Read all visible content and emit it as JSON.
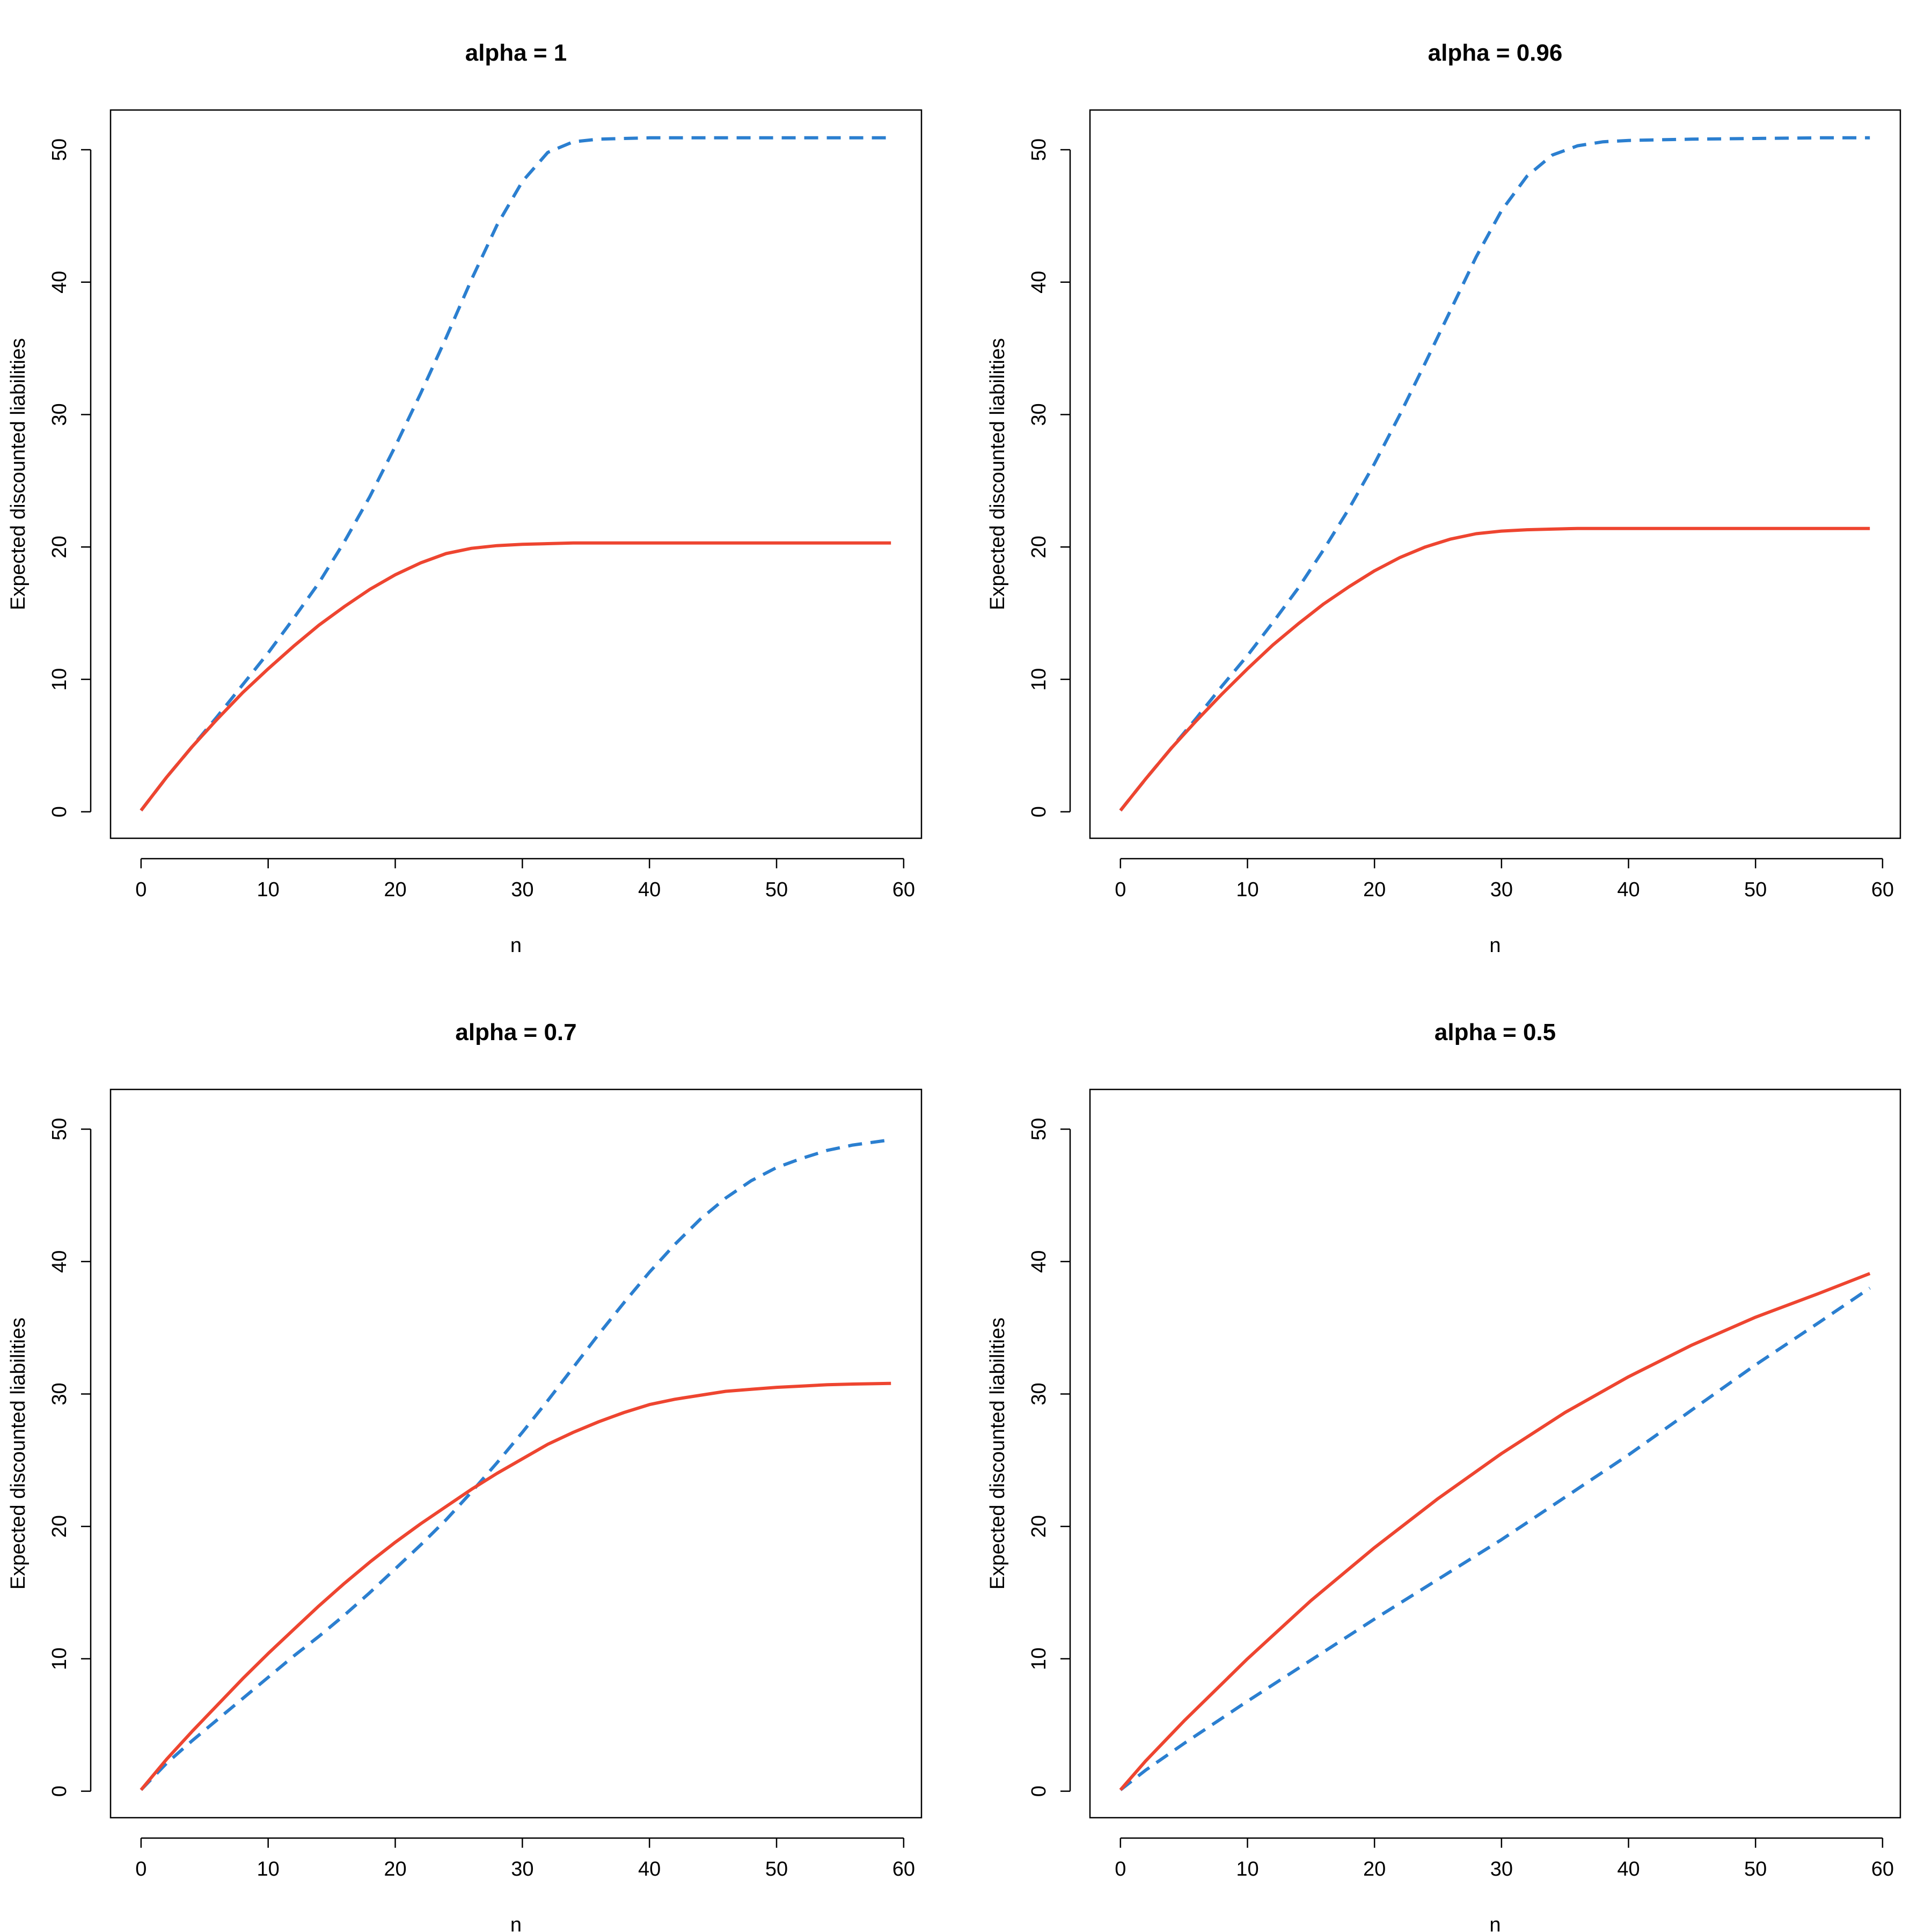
{
  "chart_data": [
    {
      "type": "line",
      "title": "alpha =  1",
      "xlabel": "n",
      "ylabel": "Expected discounted liabilities",
      "xlim": [
        -2.4,
        61.4
      ],
      "ylim": [
        -2,
        53
      ],
      "xticks": [
        "0",
        "10",
        "20",
        "30",
        "40",
        "50",
        "60"
      ],
      "yticks": [
        "0",
        "10",
        "20",
        "30",
        "40",
        "50"
      ],
      "series": [
        {
          "style": "dashed",
          "color": "#2B7FD0",
          "x": [
            0,
            2,
            4,
            6,
            8,
            10,
            12,
            14,
            16,
            18,
            20,
            22,
            24,
            26,
            28,
            30,
            32,
            34,
            36,
            38,
            40,
            45,
            50,
            55,
            59
          ],
          "y": [
            0.1,
            2.6,
            4.9,
            7.2,
            9.6,
            12.0,
            14.6,
            17.3,
            20.4,
            23.8,
            27.6,
            31.6,
            35.8,
            40.2,
            44.3,
            47.6,
            49.8,
            50.6,
            50.8,
            50.85,
            50.9,
            50.9,
            50.9,
            50.9,
            50.9
          ]
        },
        {
          "style": "solid",
          "color": "#EE4530",
          "x": [
            0,
            2,
            4,
            6,
            8,
            10,
            12,
            14,
            16,
            18,
            20,
            22,
            24,
            26,
            28,
            30,
            32,
            34,
            36,
            40,
            45,
            50,
            55,
            59
          ],
          "y": [
            0.1,
            2.6,
            4.9,
            7.0,
            9.0,
            10.8,
            12.5,
            14.1,
            15.5,
            16.8,
            17.9,
            18.8,
            19.5,
            19.9,
            20.1,
            20.2,
            20.25,
            20.3,
            20.3,
            20.3,
            20.3,
            20.3,
            20.3,
            20.3
          ]
        }
      ]
    },
    {
      "type": "line",
      "title": "alpha =  0.96",
      "xlabel": "n",
      "ylabel": "Expected discounted liabilities",
      "xlim": [
        -2.4,
        61.4
      ],
      "ylim": [
        -2,
        53
      ],
      "xticks": [
        "0",
        "10",
        "20",
        "30",
        "40",
        "50",
        "60"
      ],
      "yticks": [
        "0",
        "10",
        "20",
        "30",
        "40",
        "50"
      ],
      "series": [
        {
          "style": "dashed",
          "color": "#2B7FD0",
          "x": [
            0,
            2,
            4,
            6,
            8,
            10,
            12,
            14,
            16,
            18,
            20,
            22,
            24,
            26,
            28,
            30,
            32,
            34,
            36,
            38,
            40,
            45,
            50,
            55,
            59
          ],
          "y": [
            0.1,
            2.5,
            4.8,
            7.1,
            9.5,
            11.8,
            14.3,
            16.9,
            19.8,
            22.9,
            26.3,
            30.0,
            33.9,
            37.9,
            41.9,
            45.4,
            48.0,
            49.6,
            50.3,
            50.6,
            50.7,
            50.8,
            50.85,
            50.9,
            50.9
          ]
        },
        {
          "style": "solid",
          "color": "#EE4530",
          "x": [
            0,
            2,
            4,
            6,
            8,
            10,
            12,
            14,
            16,
            18,
            20,
            22,
            24,
            26,
            28,
            30,
            32,
            34,
            36,
            40,
            45,
            50,
            55,
            59
          ],
          "y": [
            0.1,
            2.5,
            4.8,
            6.9,
            8.9,
            10.8,
            12.6,
            14.2,
            15.7,
            17.0,
            18.2,
            19.2,
            20.0,
            20.6,
            21.0,
            21.2,
            21.3,
            21.35,
            21.4,
            21.4,
            21.4,
            21.4,
            21.4,
            21.4
          ]
        }
      ]
    },
    {
      "type": "line",
      "title": "alpha =  0.7",
      "xlabel": "n",
      "ylabel": "Expected discounted liabilities",
      "xlim": [
        -2.4,
        61.4
      ],
      "ylim": [
        -2,
        53
      ],
      "xticks": [
        "0",
        "10",
        "20",
        "30",
        "40",
        "50",
        "60"
      ],
      "yticks": [
        "0",
        "10",
        "20",
        "30",
        "40",
        "50"
      ],
      "series": [
        {
          "style": "dashed",
          "color": "#2B7FD0",
          "x": [
            0,
            2,
            4,
            6,
            8,
            10,
            12,
            14,
            16,
            18,
            20,
            22,
            24,
            26,
            28,
            30,
            32,
            34,
            36,
            38,
            40,
            42,
            44,
            46,
            48,
            50,
            52,
            54,
            56,
            59
          ],
          "y": [
            0.1,
            2.1,
            3.8,
            5.4,
            7.0,
            8.6,
            10.2,
            11.7,
            13.3,
            15.0,
            16.8,
            18.6,
            20.5,
            22.6,
            24.8,
            27.1,
            29.5,
            32.0,
            34.5,
            36.9,
            39.2,
            41.3,
            43.2,
            44.8,
            46.1,
            47.1,
            47.8,
            48.4,
            48.8,
            49.2
          ]
        },
        {
          "style": "solid",
          "color": "#EE4530",
          "x": [
            0,
            2,
            4,
            6,
            8,
            10,
            12,
            14,
            16,
            18,
            20,
            22,
            24,
            26,
            28,
            30,
            32,
            34,
            36,
            38,
            40,
            42,
            44,
            46,
            48,
            50,
            52,
            54,
            56,
            59
          ],
          "y": [
            0.1,
            2.4,
            4.5,
            6.5,
            8.5,
            10.4,
            12.2,
            14.0,
            15.7,
            17.3,
            18.8,
            20.2,
            21.5,
            22.8,
            24.0,
            25.1,
            26.2,
            27.1,
            27.9,
            28.6,
            29.2,
            29.6,
            29.9,
            30.2,
            30.35,
            30.5,
            30.6,
            30.7,
            30.75,
            30.8
          ]
        }
      ]
    },
    {
      "type": "line",
      "title": "alpha =  0.5",
      "xlabel": "n",
      "ylabel": "Expected discounted liabilities",
      "xlim": [
        -2.4,
        61.4
      ],
      "ylim": [
        -2,
        53
      ],
      "xticks": [
        "0",
        "10",
        "20",
        "30",
        "40",
        "50",
        "60"
      ],
      "yticks": [
        "0",
        "10",
        "20",
        "30",
        "40",
        "50"
      ],
      "series": [
        {
          "style": "dashed",
          "color": "#2B7FD0",
          "x": [
            0,
            2,
            5,
            10,
            15,
            20,
            25,
            30,
            35,
            40,
            45,
            50,
            55,
            59
          ],
          "y": [
            0.1,
            1.6,
            3.6,
            6.8,
            9.9,
            13.0,
            16.0,
            19.0,
            22.2,
            25.4,
            28.8,
            32.2,
            35.4,
            38.0
          ]
        },
        {
          "style": "solid",
          "color": "#EE4530",
          "x": [
            0,
            2,
            5,
            10,
            15,
            20,
            25,
            30,
            35,
            40,
            45,
            50,
            55,
            59
          ],
          "y": [
            0.1,
            2.3,
            5.3,
            10.0,
            14.4,
            18.4,
            22.1,
            25.5,
            28.6,
            31.3,
            33.7,
            35.8,
            37.6,
            39.1
          ]
        }
      ]
    }
  ]
}
